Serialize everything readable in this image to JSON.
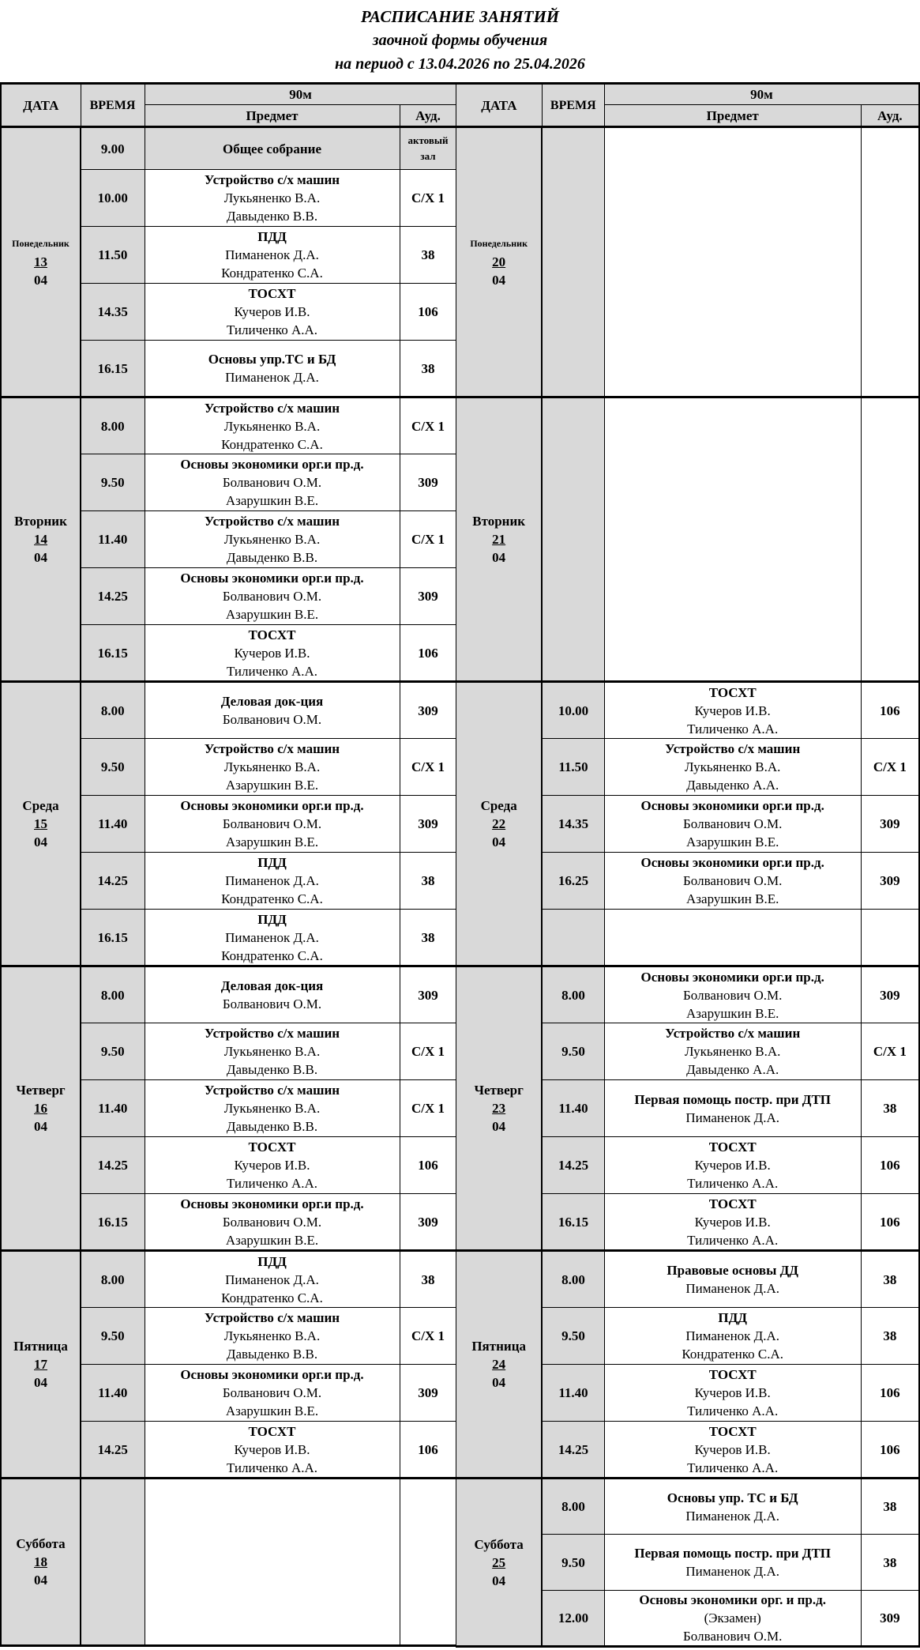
{
  "title": "РАСПИСАНИЕ ЗАНЯТИЙ",
  "subtitle": "заочной формы обучения",
  "period": "на период с 13.04.2026  по 25.04.2026",
  "header": {
    "date": "ДАТА",
    "time": "ВРЕМЯ",
    "duration": "90м",
    "subject": "Предмет",
    "room": "Ауд."
  },
  "colors": {
    "header_bg": "#d9d9d9",
    "border": "#000000"
  },
  "left": {
    "days": [
      {
        "name": "Понедельник",
        "day": "13",
        "month": "04",
        "slots": [
          {
            "time": "9.00",
            "subject": "Общее собрание",
            "teachers": [],
            "room": "актовый зал",
            "highlight": true
          },
          {
            "time": "10.00",
            "subject": "Устройство с/х машин",
            "teachers": [
              "Лукьяненко В.А.",
              "Давыденко В.В."
            ],
            "room": "С/Х 1"
          },
          {
            "time": "11.50",
            "subject": "ПДД",
            "teachers": [
              "Пиманенок Д.А.",
              "Кондратенко С.А."
            ],
            "room": "38"
          },
          {
            "time": "14.35",
            "subject": "ТОСХТ",
            "teachers": [
              "Кучеров И.В.",
              "Тиличенко А.А."
            ],
            "room": "106"
          },
          {
            "time": "16.15",
            "subject": "Основы упр.ТС и БД",
            "teachers": [
              "Пиманенок Д.А."
            ],
            "room": "38"
          }
        ]
      },
      {
        "name": "Вторник",
        "day": "14",
        "month": "04",
        "slots": [
          {
            "time": "8.00",
            "subject": "Устройство с/х машин",
            "teachers": [
              "Лукьяненко В.А.",
              "Кондратенко С.А."
            ],
            "room": "С/Х 1"
          },
          {
            "time": "9.50",
            "subject": "Основы экономики орг.и пр.д.",
            "teachers": [
              "Болванович О.М.",
              "Азарушкин В.Е."
            ],
            "room": "309"
          },
          {
            "time": "11.40",
            "subject": "Устройство с/х машин",
            "teachers": [
              "Лукьяненко В.А.",
              "Давыденко В.В."
            ],
            "room": "С/Х 1"
          },
          {
            "time": "14.25",
            "subject": "Основы экономики орг.и пр.д.",
            "teachers": [
              "Болванович О.М.",
              "Азарушкин В.Е."
            ],
            "room": "309"
          },
          {
            "time": "16.15",
            "subject": "ТОСХТ",
            "teachers": [
              "Кучеров И.В.",
              "Тиличенко А.А."
            ],
            "room": "106"
          }
        ]
      },
      {
        "name": "Среда",
        "day": "15",
        "month": "04",
        "slots": [
          {
            "time": "8.00",
            "subject": "Деловая док-ция",
            "teachers": [
              "Болванович О.М."
            ],
            "room": "309"
          },
          {
            "time": "9.50",
            "subject": "Устройство с/х машин",
            "teachers": [
              "Лукьяненко В.А.",
              "Азарушкин В.Е."
            ],
            "room": "С/Х 1"
          },
          {
            "time": "11.40",
            "subject": "Основы экономики орг.и пр.д.",
            "teachers": [
              "Болванович О.М.",
              "Азарушкин В.Е."
            ],
            "room": "309"
          },
          {
            "time": "14.25",
            "subject": "ПДД",
            "teachers": [
              "Пиманенок Д.А.",
              "Кондратенко С.А."
            ],
            "room": "38"
          },
          {
            "time": "16.15",
            "subject": "ПДД",
            "teachers": [
              "Пиманенок Д.А.",
              "Кондратенко С.А."
            ],
            "room": "38"
          }
        ]
      },
      {
        "name": "Четверг",
        "day": "16",
        "month": "04",
        "slots": [
          {
            "time": "8.00",
            "subject": "Деловая док-ция",
            "teachers": [
              "Болванович О.М."
            ],
            "room": "309"
          },
          {
            "time": "9.50",
            "subject": "Устройство с/х машин",
            "teachers": [
              "Лукьяненко В.А.",
              "Давыденко В.В."
            ],
            "room": "С/Х 1"
          },
          {
            "time": "11.40",
            "subject": "Устройство с/х машин",
            "teachers": [
              "Лукьяненко В.А.",
              "Давыденко В.В."
            ],
            "room": "С/Х 1"
          },
          {
            "time": "14.25",
            "subject": "ТОСХТ",
            "teachers": [
              "Кучеров И.В.",
              "Тиличенко А.А."
            ],
            "room": "106"
          },
          {
            "time": "16.15",
            "subject": "Основы экономики орг.и пр.д.",
            "teachers": [
              "Болванович О.М.",
              "Азарушкин В.Е."
            ],
            "room": "309"
          }
        ]
      },
      {
        "name": "Пятница",
        "day": "17",
        "month": "04",
        "slots": [
          {
            "time": "8.00",
            "subject": "ПДД",
            "teachers": [
              "Пиманенок Д.А.",
              "Кондратенко С.А."
            ],
            "room": "38"
          },
          {
            "time": "9.50",
            "subject": "Устройство с/х машин",
            "teachers": [
              "Лукьяненко В.А.",
              "Давыденко В.В."
            ],
            "room": "С/Х 1"
          },
          {
            "time": "11.40",
            "subject": "Основы экономики орг.и пр.д.",
            "teachers": [
              "Болванович О.М.",
              "Азарушкин В.Е."
            ],
            "room": "309"
          },
          {
            "time": "14.25",
            "subject": "ТОСХТ",
            "teachers": [
              "Кучеров И.В.",
              "Тиличенко А.А."
            ],
            "room": "106"
          }
        ]
      },
      {
        "name": "Суббота",
        "day": "18",
        "month": "04",
        "slots": []
      }
    ]
  },
  "right": {
    "days": [
      {
        "name": "Понедельник",
        "day": "20",
        "month": "04",
        "slots": []
      },
      {
        "name": "Вторник",
        "day": "21",
        "month": "04",
        "slots": []
      },
      {
        "name": "Среда",
        "day": "22",
        "month": "04",
        "slots": [
          {
            "time": "10.00",
            "subject": "ТОСХТ",
            "teachers": [
              "Кучеров И.В.",
              "Тиличенко А.А."
            ],
            "room": "106"
          },
          {
            "time": "11.50",
            "subject": "Устройство с/х машин",
            "teachers": [
              "Лукьяненко В.А.",
              "Давыденко А.А."
            ],
            "room": "С/Х 1"
          },
          {
            "time": "14.35",
            "subject": "Основы экономики орг.и пр.д.",
            "teachers": [
              "Болванович О.М.",
              "Азарушкин В.Е."
            ],
            "room": "309"
          },
          {
            "time": "16.25",
            "subject": "Основы экономики орг.и пр.д.",
            "teachers": [
              "Болванович О.М.",
              "Азарушкин В.Е."
            ],
            "room": "309"
          },
          {
            "time": "",
            "subject": "",
            "teachers": [],
            "room": ""
          }
        ]
      },
      {
        "name": "Четверг",
        "day": "23",
        "month": "04",
        "slots": [
          {
            "time": "8.00",
            "subject": "Основы экономики орг.и пр.д.",
            "teachers": [
              "Болванович О.М.",
              "Азарушкин В.Е."
            ],
            "room": "309"
          },
          {
            "time": "9.50",
            "subject": "Устройство с/х машин",
            "teachers": [
              "Лукьяненко В.А.",
              "Давыденко А.А."
            ],
            "room": "С/Х 1"
          },
          {
            "time": "11.40",
            "subject": "Первая помощь постр. при ДТП",
            "teachers": [
              "Пиманенок Д.А."
            ],
            "room": "38"
          },
          {
            "time": "14.25",
            "subject": "ТОСХТ",
            "teachers": [
              "Кучеров И.В.",
              "Тиличенко А.А."
            ],
            "room": "106"
          },
          {
            "time": "16.15",
            "subject": "ТОСХТ",
            "teachers": [
              "Кучеров И.В.",
              "Тиличенко А.А."
            ],
            "room": "106"
          }
        ]
      },
      {
        "name": "Пятница",
        "day": "24",
        "month": "04",
        "slots": [
          {
            "time": "8.00",
            "subject": "Правовые основы ДД",
            "teachers": [
              "Пиманенок Д.А."
            ],
            "room": "38"
          },
          {
            "time": "9.50",
            "subject": "ПДД",
            "teachers": [
              "Пиманенок Д.А.",
              "Кондратенко С.А."
            ],
            "room": "38"
          },
          {
            "time": "11.40",
            "subject": "ТОСХТ",
            "teachers": [
              "Кучеров И.В.",
              "Тиличенко А.А."
            ],
            "room": "106"
          },
          {
            "time": "14.25",
            "subject": "ТОСХТ",
            "teachers": [
              "Кучеров И.В.",
              "Тиличенко А.А."
            ],
            "room": "106"
          }
        ]
      },
      {
        "name": "Суббота",
        "day": "25",
        "month": "04",
        "slots": [
          {
            "time": "8.00",
            "subject": "Основы упр. ТС и БД",
            "teachers": [
              "Пиманенок Д.А."
            ],
            "room": "38"
          },
          {
            "time": "9.50",
            "subject": "Первая помощь постр. при ДТП",
            "teachers": [
              "Пиманенок Д.А."
            ],
            "room": "38"
          },
          {
            "time": "12.00",
            "subject": "Основы экономики орг. и пр.д.",
            "teachers": [
              "(Экзамен)",
              "Болванович О.М."
            ],
            "room": "309"
          }
        ]
      }
    ]
  }
}
